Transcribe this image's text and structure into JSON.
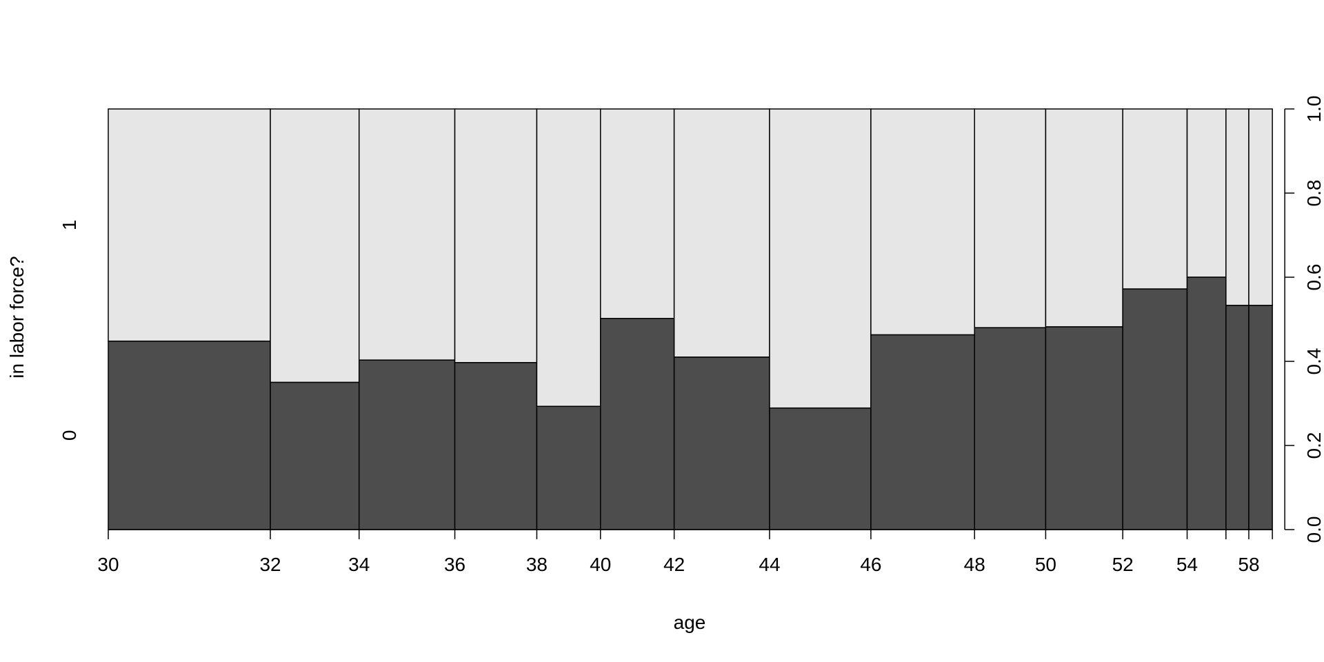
{
  "chart_data": {
    "type": "spineplot",
    "xlabel": "age",
    "ylabel": "in labor force?",
    "x_tick_labels": [
      "30",
      "32",
      "34",
      "36",
      "38",
      "40",
      "42",
      "44",
      "46",
      "48",
      "50",
      "52",
      "54",
      "58"
    ],
    "y_category_labels": [
      "0",
      "1"
    ],
    "right_axis_ticks": [
      "0.0",
      "0.2",
      "0.4",
      "0.6",
      "0.8",
      "1.0"
    ],
    "bins": [
      {
        "start": 30,
        "width": 0.139,
        "prop0": 0.448
      },
      {
        "start": 32,
        "width": 0.0761,
        "prop0": 0.35
      },
      {
        "start": 34,
        "width": 0.0821,
        "prop0": 0.403
      },
      {
        "start": 36,
        "width": 0.0703,
        "prop0": 0.397
      },
      {
        "start": 38,
        "width": 0.0546,
        "prop0": 0.293
      },
      {
        "start": 40,
        "width": 0.0632,
        "prop0": 0.502
      },
      {
        "start": 42,
        "width": 0.0818,
        "prop0": 0.41
      },
      {
        "start": 44,
        "width": 0.0869,
        "prop0": 0.289
      },
      {
        "start": 46,
        "width": 0.0889,
        "prop0": 0.463
      },
      {
        "start": 48,
        "width": 0.061,
        "prop0": 0.48
      },
      {
        "start": 50,
        "width": 0.0661,
        "prop0": 0.482
      },
      {
        "start": 52,
        "width": 0.0552,
        "prop0": 0.572
      },
      {
        "start": 54,
        "width": 0.0333,
        "prop0": 0.6
      },
      {
        "start": 56,
        "width": 0.0196,
        "prop0": 0.533
      },
      {
        "start": 58,
        "width": 0.0202,
        "prop0": 0.533
      }
    ],
    "x_tick_positions": [
      0,
      0.139,
      0.2151,
      0.2972,
      0.3675,
      0.4221,
      0.4853,
      0.5671,
      0.654,
      0.7429,
      0.8039,
      0.87,
      0.9252,
      0.9781
    ],
    "ylim": [
      0,
      1
    ],
    "colors": {
      "category_0": "#4d4d4d",
      "category_1": "#e6e6e6",
      "border": "#000000"
    }
  }
}
